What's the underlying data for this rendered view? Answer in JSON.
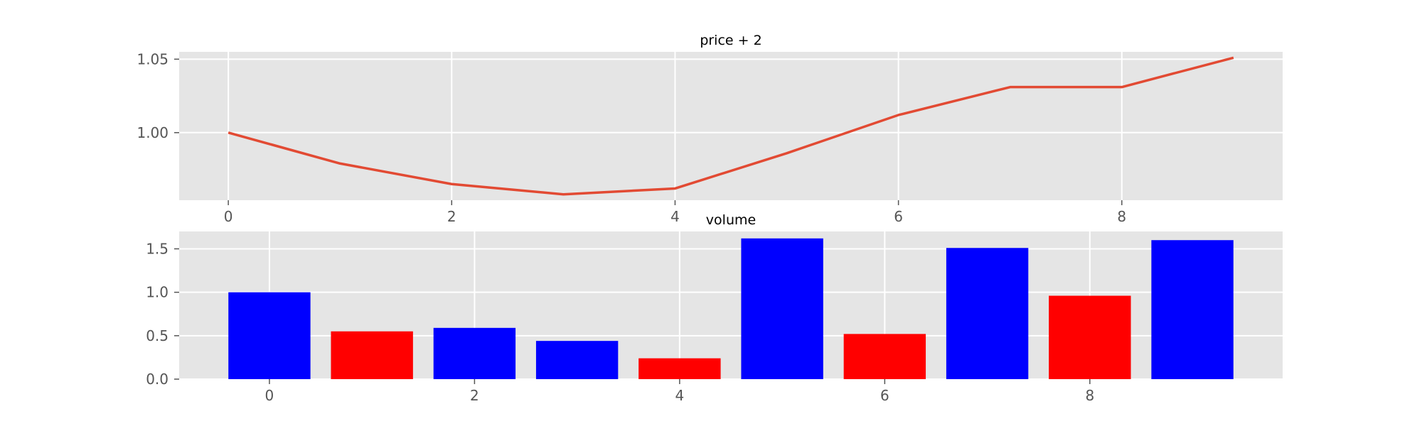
{
  "colors": {
    "panel_bg": "#e5e5e5",
    "grid": "#ffffff",
    "line": "#e24a33",
    "bar_up": "#0000ff",
    "bar_down": "#ff0000",
    "tick_text": "#555555"
  },
  "chart_data": [
    {
      "type": "line",
      "title": "price + 2",
      "xlabel": "",
      "ylabel": "",
      "x": [
        0,
        1,
        2,
        3,
        4,
        5,
        6,
        7,
        8,
        9
      ],
      "series": [
        {
          "values": [
            1.0,
            0.979,
            0.965,
            0.958,
            0.962,
            0.986,
            1.012,
            1.031,
            1.031,
            1.051
          ]
        }
      ],
      "xlim": [
        -0.44,
        9.44
      ],
      "ylim": [
        0.954,
        1.055
      ],
      "xticks": [
        0,
        2,
        4,
        6,
        8
      ],
      "xtick_labels": [
        "0",
        "2",
        "4",
        "6",
        "8"
      ],
      "yticks": [
        1.0,
        1.05
      ],
      "ytick_labels": [
        "1.00",
        "1.05"
      ],
      "grid": true
    },
    {
      "type": "bar",
      "title": "volume",
      "xlabel": "",
      "ylabel": "",
      "x": [
        0,
        1,
        2,
        3,
        4,
        5,
        6,
        7,
        8,
        9
      ],
      "values": [
        1.0,
        0.55,
        0.59,
        0.44,
        0.24,
        1.62,
        0.52,
        1.51,
        0.96,
        1.6
      ],
      "bar_colors": [
        "blue",
        "red",
        "blue",
        "blue",
        "red",
        "blue",
        "red",
        "blue",
        "red",
        "blue"
      ],
      "xlim": [
        -0.88,
        9.88
      ],
      "ylim": [
        0,
        1.7
      ],
      "xticks": [
        0,
        2,
        4,
        6,
        8
      ],
      "xtick_labels": [
        "0",
        "2",
        "4",
        "6",
        "8"
      ],
      "yticks": [
        0.0,
        0.5,
        1.0,
        1.5
      ],
      "ytick_labels": [
        "0.0",
        "0.5",
        "1.0",
        "1.5"
      ],
      "grid": true
    }
  ]
}
